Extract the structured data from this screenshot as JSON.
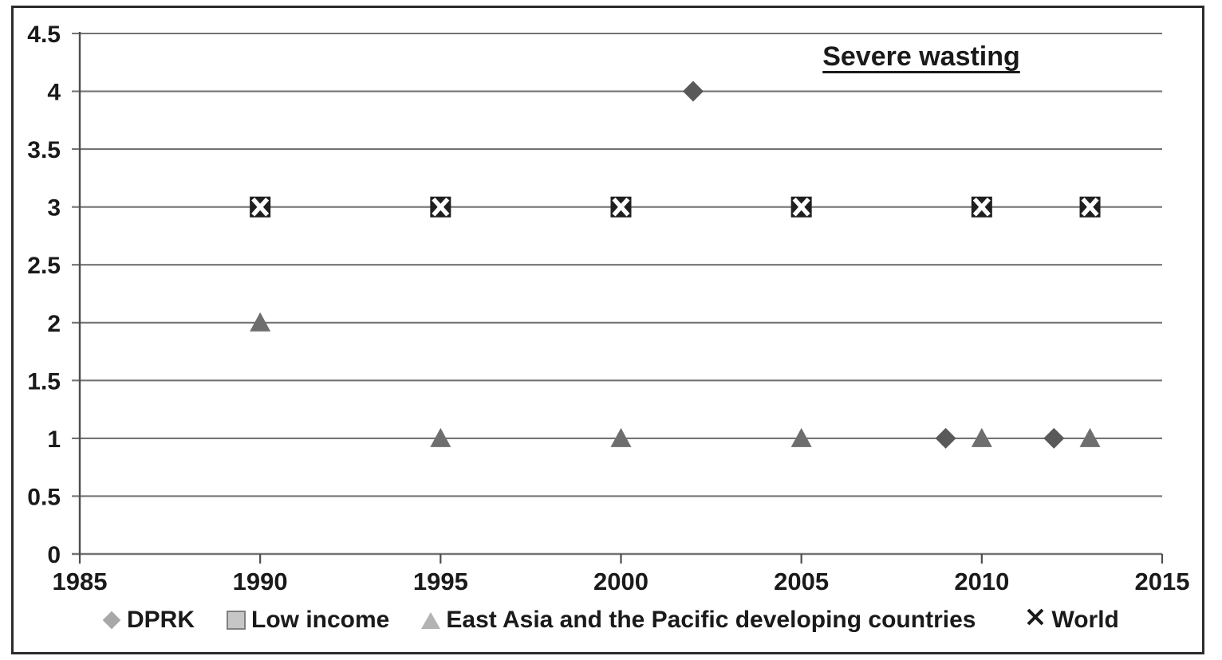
{
  "chart_data": {
    "type": "scatter",
    "title": "Severe wasting",
    "x_axis": {
      "min": 1985,
      "max": 2015,
      "ticks": [
        1985,
        1990,
        1995,
        2000,
        2005,
        2010,
        2015
      ],
      "tick_labels": [
        "1985",
        "1990",
        "1995",
        "2000",
        "2005",
        "2010",
        "2015"
      ]
    },
    "y_axis": {
      "min": 0,
      "max": 4.5,
      "ticks": [
        0,
        0.5,
        1,
        1.5,
        2,
        2.5,
        3,
        3.5,
        4,
        4.5
      ],
      "tick_labels": [
        "0",
        "0.5",
        "1",
        "1.5",
        "2",
        "2.5",
        "3",
        "3.5",
        "4",
        "4.5"
      ]
    },
    "grid": "horizontal",
    "legend_position": "bottom",
    "series": [
      {
        "name": "DPRK",
        "marker": "diamond",
        "color": "#595959",
        "legend_color": "#a8a8a8",
        "points": [
          [
            2002,
            4
          ],
          [
            2009,
            1
          ],
          [
            2012,
            1
          ]
        ]
      },
      {
        "name": "Low income",
        "marker": "square",
        "color": "#1f1f1f",
        "legend_color": "#c6c6c6",
        "points": [
          [
            1990,
            3
          ],
          [
            1995,
            3
          ],
          [
            2000,
            3
          ],
          [
            2005,
            3
          ],
          [
            2010,
            3
          ],
          [
            2013,
            3
          ]
        ]
      },
      {
        "name": "East Asia and the Pacific developing countries",
        "marker": "triangle",
        "color": "#6e6e6e",
        "legend_color": "#b3b3b3",
        "points": [
          [
            1990,
            2
          ],
          [
            1995,
            1
          ],
          [
            2000,
            1
          ],
          [
            2005,
            1
          ],
          [
            2010,
            1
          ],
          [
            2013,
            1
          ]
        ]
      },
      {
        "name": "World",
        "marker": "x",
        "color": "#ffffff",
        "legend_color": "#1a1a1a",
        "points": [
          [
            1990,
            3
          ],
          [
            1995,
            3
          ],
          [
            2000,
            3
          ],
          [
            2005,
            3
          ],
          [
            2010,
            3
          ],
          [
            2013,
            3
          ]
        ]
      }
    ],
    "colors": {
      "grid": "#737373",
      "axis": "#4d4d4d",
      "text": "#1a1a1a",
      "frame": "#2b2b2b"
    }
  }
}
